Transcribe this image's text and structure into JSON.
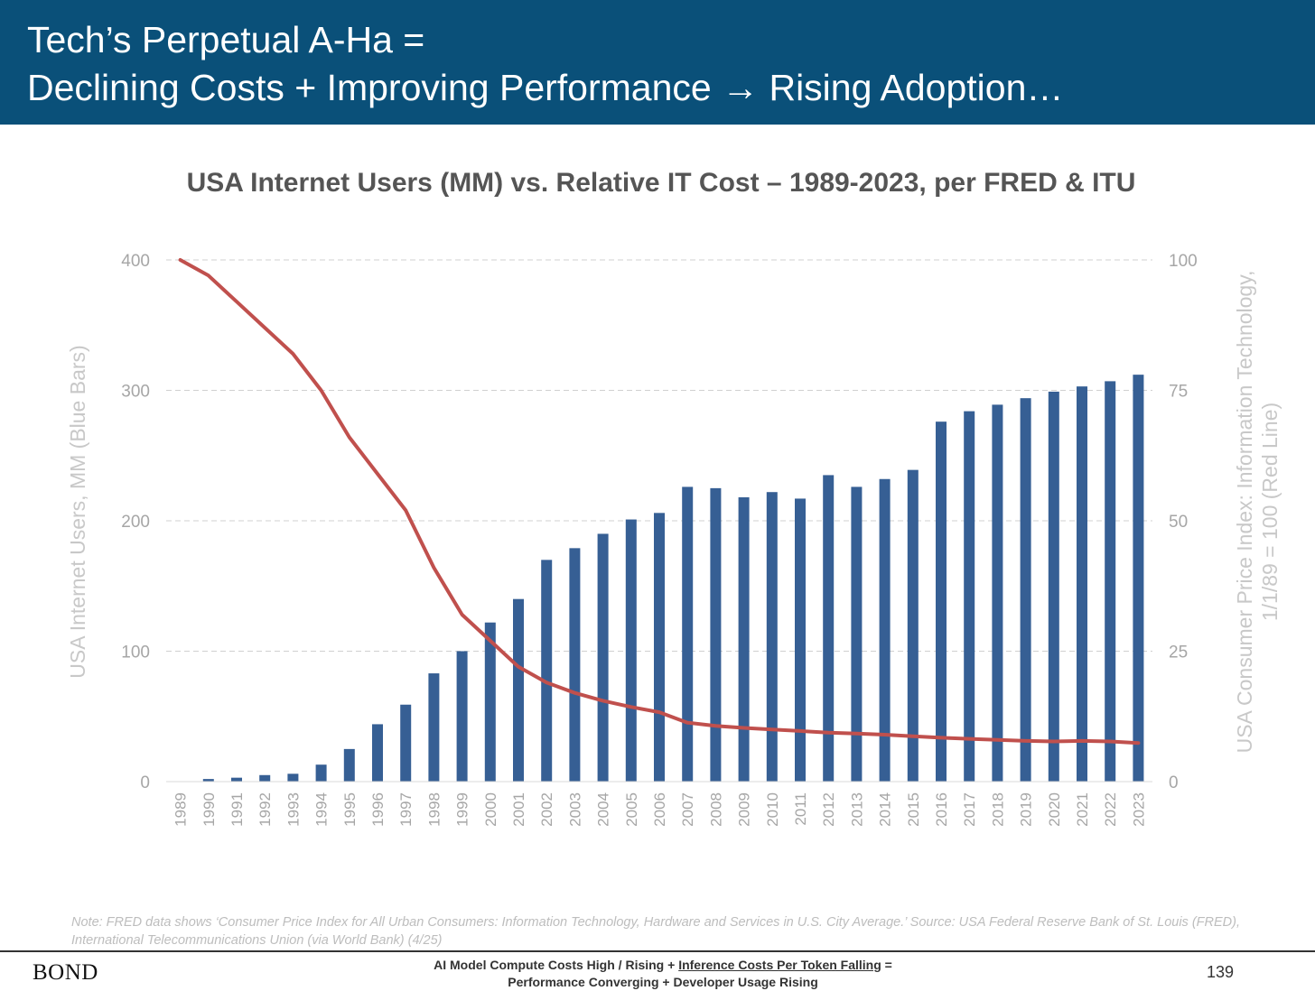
{
  "header": {
    "line1": "Tech’s Perpetual A-Ha =",
    "line2": "Declining Costs + Improving Performance → Rising Adoption…",
    "background_color": "#0a5079"
  },
  "chart_data": {
    "type": "bar+line",
    "title": "USA Internet Users (MM) vs. Relative IT Cost – 1989-2023, per FRED & ITU",
    "categories": [
      "1989",
      "1990",
      "1991",
      "1992",
      "1993",
      "1994",
      "1995",
      "1996",
      "1997",
      "1998",
      "1999",
      "2000",
      "2001",
      "2002",
      "2003",
      "2004",
      "2005",
      "2006",
      "2007",
      "2008",
      "2009",
      "2010",
      "2011",
      "2012",
      "2013",
      "2014",
      "2015",
      "2016",
      "2017",
      "2018",
      "2019",
      "2020",
      "2021",
      "2022",
      "2023"
    ],
    "series": [
      {
        "type": "bar",
        "axis": "left",
        "color": "#365f94",
        "values": [
          0,
          2,
          3,
          5,
          6,
          13,
          25,
          44,
          59,
          83,
          100,
          122,
          140,
          170,
          179,
          190,
          201,
          206,
          226,
          225,
          218,
          222,
          217,
          235,
          226,
          232,
          239,
          276,
          284,
          289,
          294,
          299,
          303,
          307,
          312
        ]
      },
      {
        "type": "line",
        "axis": "right",
        "color": "#c0504d",
        "values": [
          100,
          97,
          92,
          87,
          82,
          75,
          66,
          59,
          52,
          41,
          32,
          27,
          22,
          19,
          17,
          15.5,
          14.3,
          13.3,
          11.3,
          10.7,
          10.3,
          10,
          9.7,
          9.4,
          9.2,
          9,
          8.7,
          8.4,
          8.2,
          8,
          7.8,
          7.7,
          7.8,
          7.7,
          7.4
        ]
      }
    ],
    "left_axis": {
      "label": "USA Internet Users, MM (Blue Bars)",
      "ylim": [
        0,
        400
      ],
      "ticks": [
        "0",
        "100",
        "200",
        "300",
        "400"
      ]
    },
    "right_axis": {
      "label_lines": [
        "USA Consumer Price Index: Information Technology,",
        "1/1/89 = 100 (Red Line)"
      ],
      "ylim": [
        0,
        100
      ],
      "ticks": [
        "0",
        "25",
        "50",
        "75",
        "100"
      ]
    },
    "grid": true,
    "legend": "none"
  },
  "note": "Note: FRED data shows ‘Consumer Price Index for All Urban Consumers: Information Technology, Hardware and Services in U.S. City Average.’ Source: USA Federal Reserve Bank of St. Louis (FRED), International Telecommunications Union (via World Bank) (4/25)",
  "footer": {
    "logo": "BOND",
    "center_prefix": "AI Model Compute Costs High / Rising + ",
    "center_underlined": "Inference Costs Per Token Falling",
    "center_suffix": " =",
    "center_line2": "Performance Converging + Developer Usage Rising",
    "page_number": "139"
  }
}
